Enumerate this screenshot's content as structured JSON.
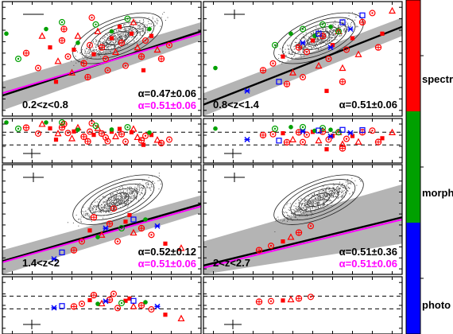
{
  "chart_data": {
    "type": "scatter",
    "panels": [
      {
        "redshift_label": "0.2<z<0.8",
        "alpha_fit": "α=0.47±0.06",
        "alpha_fixed": "α=0.51±0.06",
        "fit_line": {
          "x": [
            0,
            1
          ],
          "y": [
            0.18,
            0.74
          ]
        },
        "fixed_line": {
          "x": [
            0,
            1
          ],
          "y": [
            0.2,
            0.72
          ]
        },
        "band": {
          "lower": [
            0.05,
            0.66
          ],
          "upper": [
            0.3,
            0.82
          ]
        },
        "points": [
          {
            "class": "spectro",
            "x": [
              0.12,
              0.18,
              0.24,
              0.28,
              0.3,
              0.33,
              0.36,
              0.38,
              0.41,
              0.44,
              0.46,
              0.48,
              0.5,
              0.52,
              0.55,
              0.57,
              0.6,
              0.62,
              0.65,
              0.68,
              0.7,
              0.72,
              0.75,
              0.78,
              0.8,
              0.84,
              0.27,
              0.35,
              0.43,
              0.53,
              0.59,
              0.66,
              0.31,
              0.45,
              0.71,
              0.2
            ],
            "y": [
              0.55,
              0.42,
              0.6,
              0.48,
              0.66,
              0.52,
              0.58,
              0.7,
              0.46,
              0.62,
              0.54,
              0.74,
              0.6,
              0.5,
              0.68,
              0.56,
              0.64,
              0.44,
              0.72,
              0.6,
              0.52,
              0.66,
              0.7,
              0.58,
              0.5,
              0.62,
              0.3,
              0.38,
              0.34,
              0.4,
              0.78,
              0.82,
              0.76,
              0.86,
              0.4,
              0.7
            ]
          },
          {
            "class": "morph",
            "x": [
              0.02,
              0.08,
              0.22,
              0.3,
              0.38,
              0.47,
              0.55,
              0.63,
              0.74
            ],
            "y": [
              0.72,
              0.5,
              0.76,
              0.82,
              0.64,
              0.8,
              0.74,
              0.85,
              0.76
            ]
          }
        ]
      },
      {
        "redshift_label": "0.8<z<1.4",
        "alpha_fit": "α=0.51±0.06",
        "alpha_fixed": "",
        "fit_line": {
          "x": [
            0,
            1
          ],
          "y": [
            0.1,
            0.78
          ]
        },
        "fixed_line": null,
        "band": {
          "lower": [
            0.0,
            0.7
          ],
          "upper": [
            0.2,
            0.86
          ]
        },
        "points": [
          {
            "class": "spectro",
            "x": [
              0.3,
              0.35,
              0.4,
              0.45,
              0.48,
              0.52,
              0.55,
              0.58,
              0.6,
              0.63,
              0.65,
              0.68,
              0.7,
              0.72,
              0.75,
              0.78,
              0.8,
              0.85,
              0.9,
              0.95,
              0.42,
              0.5,
              0.62,
              0.7,
              0.88
            ],
            "y": [
              0.4,
              0.46,
              0.52,
              0.38,
              0.6,
              0.56,
              0.66,
              0.44,
              0.7,
              0.5,
              0.62,
              0.74,
              0.3,
              0.58,
              0.68,
              0.54,
              0.82,
              0.9,
              0.72,
              0.92,
              0.28,
              0.34,
              0.22,
              0.42,
              0.6
            ]
          },
          {
            "class": "morph",
            "x": [
              0.06,
              0.36,
              0.44,
              0.5,
              0.56,
              0.6,
              0.64,
              0.68
            ],
            "y": [
              0.42,
              0.62,
              0.72,
              0.76,
              0.7,
              0.8,
              0.78,
              0.74
            ]
          },
          {
            "class": "photo",
            "x": [
              0.22,
              0.38,
              0.5,
              0.58,
              0.64,
              0.7,
              0.74,
              0.8
            ],
            "y": [
              0.22,
              0.3,
              0.64,
              0.72,
              0.6,
              0.82,
              0.76,
              0.88
            ]
          }
        ]
      },
      {
        "redshift_label": "1.4<z<2",
        "alpha_fit": "α=0.52±0.12",
        "alpha_fixed": "α=0.51±0.06",
        "fit_line": {
          "x": [
            0,
            1
          ],
          "y": [
            0.12,
            0.64
          ]
        },
        "fixed_line": {
          "x": [
            0,
            1
          ],
          "y": [
            0.11,
            0.62
          ]
        },
        "band": {
          "lower": [
            0.0,
            0.56
          ],
          "upper": [
            0.22,
            0.72
          ]
        },
        "points": [
          {
            "class": "spectro",
            "x": [
              0.36,
              0.4,
              0.44,
              0.5,
              0.54,
              0.58,
              0.62,
              0.66,
              0.7,
              0.75,
              0.82,
              0.9,
              0.46,
              0.56,
              0.64
            ],
            "y": [
              0.22,
              0.3,
              0.4,
              0.36,
              0.46,
              0.3,
              0.48,
              0.38,
              0.42,
              0.36,
              0.28,
              0.24,
              0.52,
              0.6,
              0.54
            ]
          },
          {
            "class": "morph",
            "x": [
              0.48,
              0.6,
              0.72
            ],
            "y": [
              0.34,
              0.42,
              0.5
            ]
          },
          {
            "class": "photo",
            "x": [
              0.26,
              0.3,
              0.52,
              0.66,
              0.78
            ],
            "y": [
              0.14,
              0.2,
              0.42,
              0.5,
              0.44
            ]
          }
        ]
      },
      {
        "redshift_label": "2<z<2.7",
        "alpha_fit": "α=0.51±0.36",
        "alpha_fixed": "α=0.51±0.06",
        "fit_line": {
          "x": [
            0,
            1
          ],
          "y": [
            0.08,
            0.52
          ]
        },
        "fixed_line": {
          "x": [
            0,
            1
          ],
          "y": [
            0.06,
            0.5
          ]
        },
        "band": {
          "lower": [
            0.0,
            0.28
          ],
          "upper": [
            0.3,
            0.82
          ]
        },
        "points": [
          {
            "class": "spectro",
            "x": [
              0.28,
              0.34,
              0.4,
              0.44,
              0.48,
              0.54
            ],
            "y": [
              0.22,
              0.26,
              0.3,
              0.34,
              0.38,
              0.44
            ]
          }
        ]
      }
    ],
    "colorbar": {
      "labels": [
        "spectro",
        "morph",
        "photo"
      ]
    }
  }
}
